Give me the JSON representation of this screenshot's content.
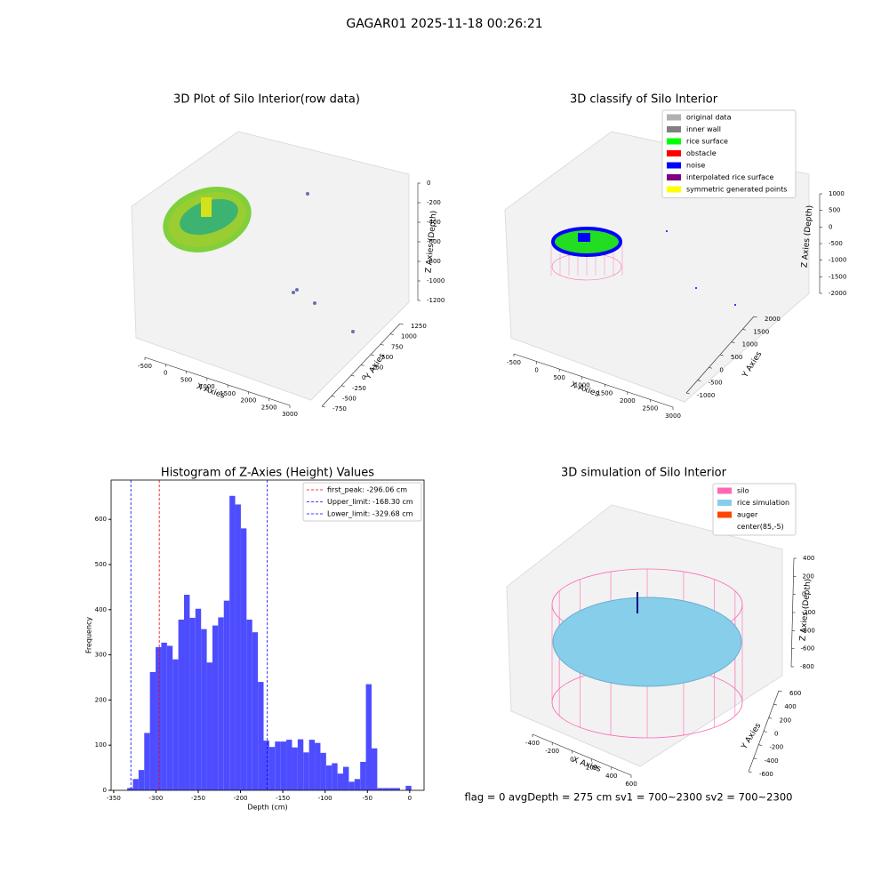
{
  "title": "GAGAR01 2025-11-18 00:26:21",
  "footer": "flag = 0     avgDepth = 275 cm  sv1 = 700~2300  sv2 = 700~2300",
  "chart_data": [
    {
      "type": "scatter3d",
      "title": "3D Plot of Silo Interior(row data)",
      "xlabel": "X Axies",
      "ylabel": "Y Axies",
      "zlabel": "Z Axies (Depth)",
      "xticks": [
        -500,
        0,
        500,
        1000,
        1500,
        2000,
        2500,
        3000
      ],
      "yticks": [
        -750,
        -500,
        -250,
        0,
        250,
        500,
        750,
        1000,
        1250
      ],
      "zticks": [
        -1200,
        -1000,
        -800,
        -600,
        -400,
        -200,
        0
      ]
    },
    {
      "type": "scatter3d",
      "title": "3D classify of Silo Interior",
      "xlabel": "X Axies",
      "ylabel": "Y Axies",
      "zlabel": "Z Axies (Depth)",
      "xticks": [
        -500,
        0,
        500,
        1000,
        1500,
        2000,
        2500,
        3000
      ],
      "yticks": [
        -1000,
        -500,
        0,
        500,
        1000,
        1500,
        2000
      ],
      "zticks": [
        -2000,
        -1500,
        -1000,
        -500,
        0,
        500,
        1000
      ],
      "legend": [
        {
          "name": "original data",
          "color": "#b0b0b0"
        },
        {
          "name": "inner wall",
          "color": "#808080"
        },
        {
          "name": "rice surface",
          "color": "#00ff00"
        },
        {
          "name": "obstacle",
          "color": "#ff0000"
        },
        {
          "name": "noise",
          "color": "#0000ff"
        },
        {
          "name": "interpolated rice surface",
          "color": "#800080"
        },
        {
          "name": "symmetric generated points",
          "color": "#ffff00"
        }
      ]
    },
    {
      "type": "histogram",
      "title": "Histogram of Z-Axies (Height) Values",
      "xlabel": "Depth (cm)",
      "ylabel": "Frequency",
      "color": "#4d4dff",
      "bins": [
        -334,
        -327.28,
        -320.56,
        -313.84,
        -307.12,
        -300.4,
        -293.68,
        -286.96,
        -280.24,
        -273.52,
        -266.8,
        -260.08,
        -253.36,
        -246.64,
        -239.92,
        -233.2,
        -226.48,
        -219.76,
        -213.04,
        -206.32,
        -199.6,
        -192.88,
        -186.16,
        -179.44,
        -172.72,
        -166,
        -159.28,
        -152.56,
        -145.84,
        -139.12,
        -132.4,
        -125.68,
        -118.96,
        -112.24,
        -105.52,
        -98.8,
        -92.08,
        -85.36,
        -78.64,
        -71.92,
        -65.2,
        -58.48,
        -51.76,
        -45.04,
        -38.32,
        -31.6,
        -24.88,
        -18.16,
        -11.44,
        -4.72,
        2
      ],
      "values": [
        5,
        25,
        45,
        127,
        262,
        317,
        327,
        320,
        290,
        378,
        433,
        382,
        402,
        357,
        283,
        365,
        383,
        420,
        652,
        633,
        580,
        378,
        350,
        240,
        110,
        96,
        108,
        108,
        112,
        95,
        113,
        84,
        112,
        105,
        83,
        55,
        60,
        37,
        52,
        19,
        25,
        63,
        235,
        93,
        5,
        5,
        5,
        5,
        0,
        10
      ],
      "xlim": [
        -353,
        17
      ],
      "ylim": [
        0,
        687
      ],
      "xticks": [
        -350,
        -300,
        -250,
        -200,
        -150,
        -100,
        -50,
        0
      ],
      "yticks": [
        0,
        100,
        200,
        300,
        400,
        500,
        600
      ],
      "lines": [
        {
          "name": "first_peak: -296.06 cm",
          "x": -296.06,
          "color": "#ff0000"
        },
        {
          "name": "Upper_limit: -168.30 cm",
          "x": -168.3,
          "color": "#0000ff"
        },
        {
          "name": "Lower_limit: -329.68 cm",
          "x": -329.68,
          "color": "#0000ff"
        }
      ]
    },
    {
      "type": "scatter3d",
      "title": "3D simulation of Silo Interior",
      "xlabel": "X Axies",
      "ylabel": "Y Axies",
      "zlabel": "Z Axies (Depth)",
      "xticks": [
        -400,
        -200,
        0,
        200,
        400,
        600
      ],
      "yticks": [
        -600,
        -400,
        -200,
        0,
        200,
        400,
        600
      ],
      "zticks": [
        -800,
        -600,
        -400,
        -200,
        0,
        200,
        400
      ],
      "legend": [
        {
          "name": "silo",
          "color": "#ff69b4"
        },
        {
          "name": "rice simulation",
          "color": "#87ceeb"
        },
        {
          "name": "auger",
          "color": "#ff4500"
        },
        {
          "name": "center(85,-5)",
          "color": "#ffffff"
        }
      ]
    }
  ]
}
